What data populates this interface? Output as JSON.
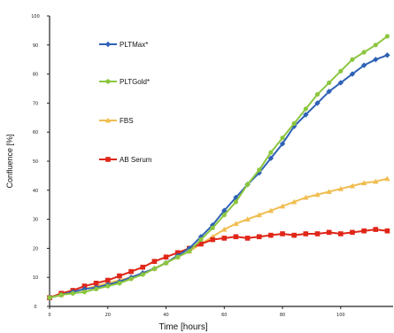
{
  "chart_data": {
    "type": "line",
    "title": "",
    "xlabel": "Time [hours]",
    "ylabel": "Confluence [%]",
    "xlim": [
      0,
      118
    ],
    "ylim": [
      0,
      100
    ],
    "x_ticks": [
      0,
      20,
      40,
      60,
      80,
      100
    ],
    "y_ticks": [
      0,
      10,
      20,
      30,
      40,
      50,
      60,
      70,
      80,
      90,
      100
    ],
    "grid": false,
    "legend_position": "top-left inside",
    "x": [
      0,
      4,
      8,
      12,
      16,
      20,
      24,
      28,
      32,
      36,
      40,
      44,
      48,
      52,
      56,
      60,
      64,
      68,
      72,
      76,
      80,
      84,
      88,
      92,
      96,
      100,
      104,
      108,
      112,
      116
    ],
    "series": [
      {
        "name": "PLTMax*",
        "color": "#2f62b5",
        "marker": "diamond",
        "values": [
          3,
          4,
          5,
          6,
          6.5,
          7.5,
          8.5,
          10,
          11.5,
          13,
          15,
          17.5,
          20,
          24,
          28,
          33,
          37.5,
          42,
          46,
          51,
          56,
          62,
          66,
          70,
          74,
          77,
          80,
          83,
          85,
          86.5
        ]
      },
      {
        "name": "PLTGold*",
        "color": "#8cc63f",
        "marker": "circle",
        "values": [
          3,
          4,
          4.5,
          5,
          6,
          7,
          8,
          9.5,
          11,
          13,
          15,
          17,
          19,
          23,
          27,
          31.5,
          36,
          42,
          47,
          53,
          58,
          63,
          68,
          73,
          77,
          81,
          85,
          87.5,
          90,
          93
        ]
      },
      {
        "name": "FBS",
        "color": "#f0bd50",
        "marker": "triangle",
        "values": [
          3,
          4,
          5,
          6,
          7,
          8,
          9,
          10,
          11.5,
          13,
          15,
          17,
          19,
          21.5,
          24,
          26.5,
          28.5,
          30,
          31.5,
          33,
          34.5,
          36,
          37.5,
          38.5,
          39.5,
          40.5,
          41.5,
          42.5,
          43,
          44
        ]
      },
      {
        "name": "AB Serum",
        "color": "#e02618",
        "marker": "square",
        "values": [
          3,
          4.5,
          5.5,
          7,
          8,
          9,
          10.5,
          12,
          13.5,
          15.5,
          17,
          18.5,
          20,
          21.5,
          23,
          23.5,
          24,
          23.5,
          24,
          24.5,
          25,
          24.5,
          25,
          25,
          25.5,
          25,
          25.5,
          26,
          26.5,
          26
        ]
      }
    ]
  }
}
